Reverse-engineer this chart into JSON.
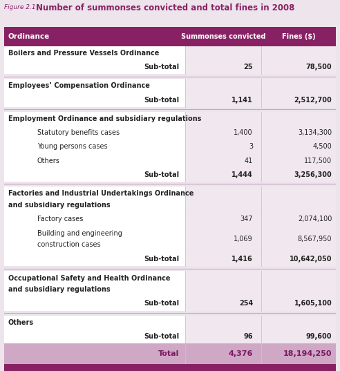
{
  "title_prefix": "Figure 2.1",
  "title": "Number of summonses convicted and total fines in 2008",
  "col_headers": [
    "Ordinance",
    "Summonses convicted",
    "Fines ($)"
  ],
  "rows": [
    {
      "type": "category",
      "text": "Boilers and Pressure Vessels Ordinance",
      "conv": "",
      "fines": "",
      "lines": 1
    },
    {
      "type": "subtotal",
      "text": "Sub-total",
      "conv": "25",
      "fines": "78,500",
      "lines": 1
    },
    {
      "type": "sep"
    },
    {
      "type": "category",
      "text": "Employees’ Compensation Ordinance",
      "conv": "",
      "fines": "",
      "lines": 1
    },
    {
      "type": "subtotal",
      "text": "Sub-total",
      "conv": "1,141",
      "fines": "2,512,700",
      "lines": 1
    },
    {
      "type": "sep"
    },
    {
      "type": "category",
      "text": "Employment Ordinance and subsidiary regulations",
      "conv": "",
      "fines": "",
      "lines": 1
    },
    {
      "type": "subitem",
      "text": "Statutory benefits cases",
      "conv": "1,400",
      "fines": "3,134,300",
      "lines": 1
    },
    {
      "type": "subitem",
      "text": "Young persons cases",
      "conv": "3",
      "fines": "4,500",
      "lines": 1
    },
    {
      "type": "subitem",
      "text": "Others",
      "conv": "41",
      "fines": "117,500",
      "lines": 1
    },
    {
      "type": "subtotal",
      "text": "Sub-total",
      "conv": "1,444",
      "fines": "3,256,300",
      "lines": 1
    },
    {
      "type": "sep"
    },
    {
      "type": "category",
      "text": "Factories and Industrial Undertakings Ordinance",
      "text2": "and subsidiary regulations",
      "conv": "",
      "fines": "",
      "lines": 2
    },
    {
      "type": "subitem",
      "text": "Factory cases",
      "conv": "347",
      "fines": "2,074,100",
      "lines": 1
    },
    {
      "type": "subitem",
      "text": "Building and engineering",
      "text2": "construction cases",
      "conv": "1,069",
      "fines": "8,567,950",
      "lines": 2
    },
    {
      "type": "subtotal",
      "text": "Sub-total",
      "conv": "1,416",
      "fines": "10,642,050",
      "lines": 1
    },
    {
      "type": "sep"
    },
    {
      "type": "category",
      "text": "Occupational Safety and Health Ordinance",
      "text2": "and subsidiary regulations",
      "conv": "",
      "fines": "",
      "lines": 2
    },
    {
      "type": "subtotal",
      "text": "Sub-total",
      "conv": "254",
      "fines": "1,605,100",
      "lines": 1
    },
    {
      "type": "sep"
    },
    {
      "type": "category",
      "text": "Others",
      "conv": "",
      "fines": "",
      "lines": 1
    },
    {
      "type": "subtotal",
      "text": "Sub-total",
      "conv": "96",
      "fines": "99,600",
      "lines": 1
    },
    {
      "type": "total",
      "text": "Total",
      "conv": "4,376",
      "fines": "18,194,250",
      "lines": 1
    }
  ],
  "header_bg": "#882164",
  "header_text_color": "#FFFFFF",
  "total_bg": "#CFA8C5",
  "total_text_color": "#7A1760",
  "sep_color": "#C8A8C0",
  "body_bg_odd": "#FFFFFF",
  "body_bg_even": "#F5EEF3",
  "alt_col_bg": "#EDE0EA",
  "title_color": "#882164",
  "prefix_color": "#882164",
  "body_text_color": "#222222",
  "subtotal_text_color": "#222222",
  "fig_bg": "#EDE4EC",
  "bottom_bar_color": "#882164",
  "row_line_color": "#D5BDD0"
}
